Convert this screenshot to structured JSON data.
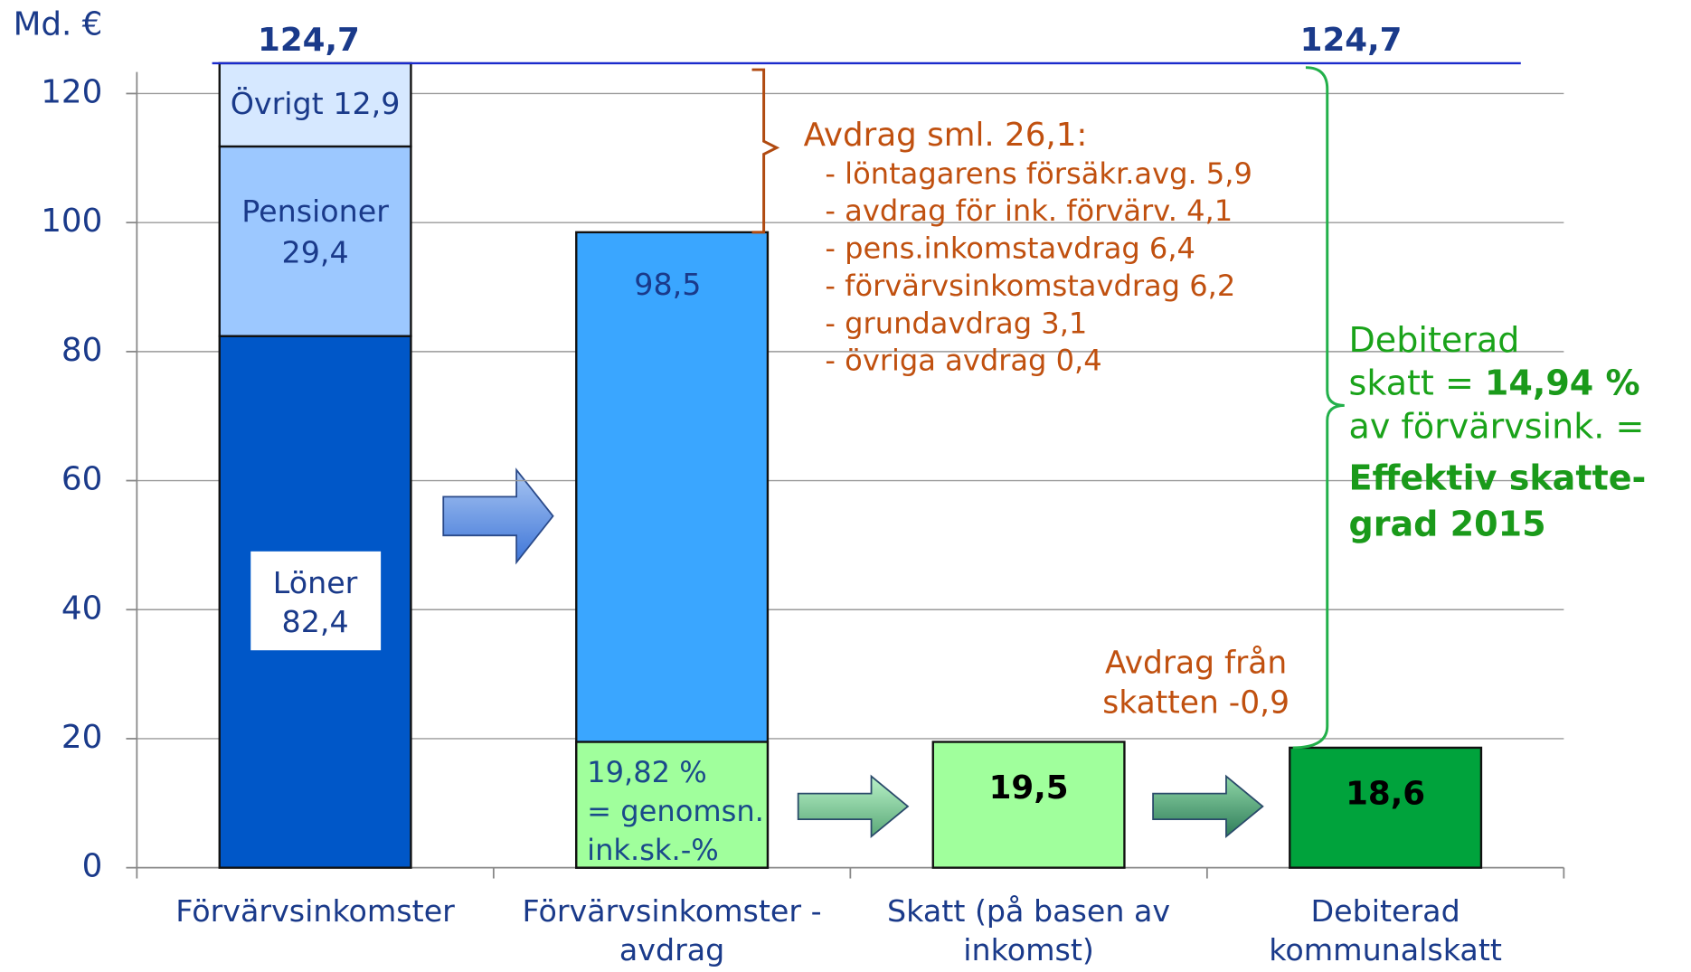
{
  "chart_data": {
    "type": "bar",
    "unit": "Md. €",
    "ylim": [
      0,
      120
    ],
    "yticks": [
      0,
      20,
      40,
      60,
      80,
      100,
      120
    ],
    "grid": true,
    "total": 124.7,
    "total_label": "124,7",
    "bars": [
      {
        "category": [
          "Förvärvsinkomster"
        ],
        "stacked": true,
        "segments": [
          {
            "name": "Löner",
            "value": 82.4,
            "value_label": "82,4",
            "color": "#0057c8"
          },
          {
            "name": "Pensioner",
            "value": 29.4,
            "value_label": "29,4",
            "color": "#9cc8ff"
          },
          {
            "name": "Övrigt",
            "value": 12.9,
            "value_label": "12,9",
            "color": "#d6e8ff"
          }
        ]
      },
      {
        "category": [
          "Förvärvsinkomster -",
          "avdrag"
        ],
        "stacked": false,
        "segments": [
          {
            "value": 98.5,
            "value_label": "98,5",
            "color": "#3aa6ff"
          },
          {
            "value": 19.5,
            "note": [
              "19,82 %",
              "= genomsn.",
              "ink.sk.-%"
            ],
            "color": "#a0ff9c"
          }
        ]
      },
      {
        "category": [
          "Skatt (på basen av",
          "inkomst)"
        ],
        "stacked": true,
        "segments": [
          {
            "value": 19.5,
            "value_label": "19,5",
            "color": "#a0ff9c"
          }
        ]
      },
      {
        "category": [
          "Debiterad",
          "kommunalskatt"
        ],
        "stacked": true,
        "segments": [
          {
            "value": 18.6,
            "value_label": "18,6",
            "color": "#00a33c"
          }
        ]
      }
    ],
    "deductions": {
      "title": "Avdrag sml. 26,1:",
      "items": [
        "- löntagarens försäkr.avg. 5,9",
        "- avdrag för ink. förvärv. 4,1",
        "- pens.inkomstavdrag 6,4",
        "- förvärvsinkomstavdrag 6,2",
        "- grundavdrag 3,1",
        "- övriga avdrag 0,4"
      ]
    },
    "tax_deduction": [
      "Avdrag från",
      "skatten -0,9"
    ],
    "tax_note": {
      "lines": [
        "Debiterad",
        "skatt =",
        "av förvärvsink. =",
        "Effektiv skatte-",
        "grad 2015"
      ],
      "highlight": "14,94 %"
    }
  }
}
